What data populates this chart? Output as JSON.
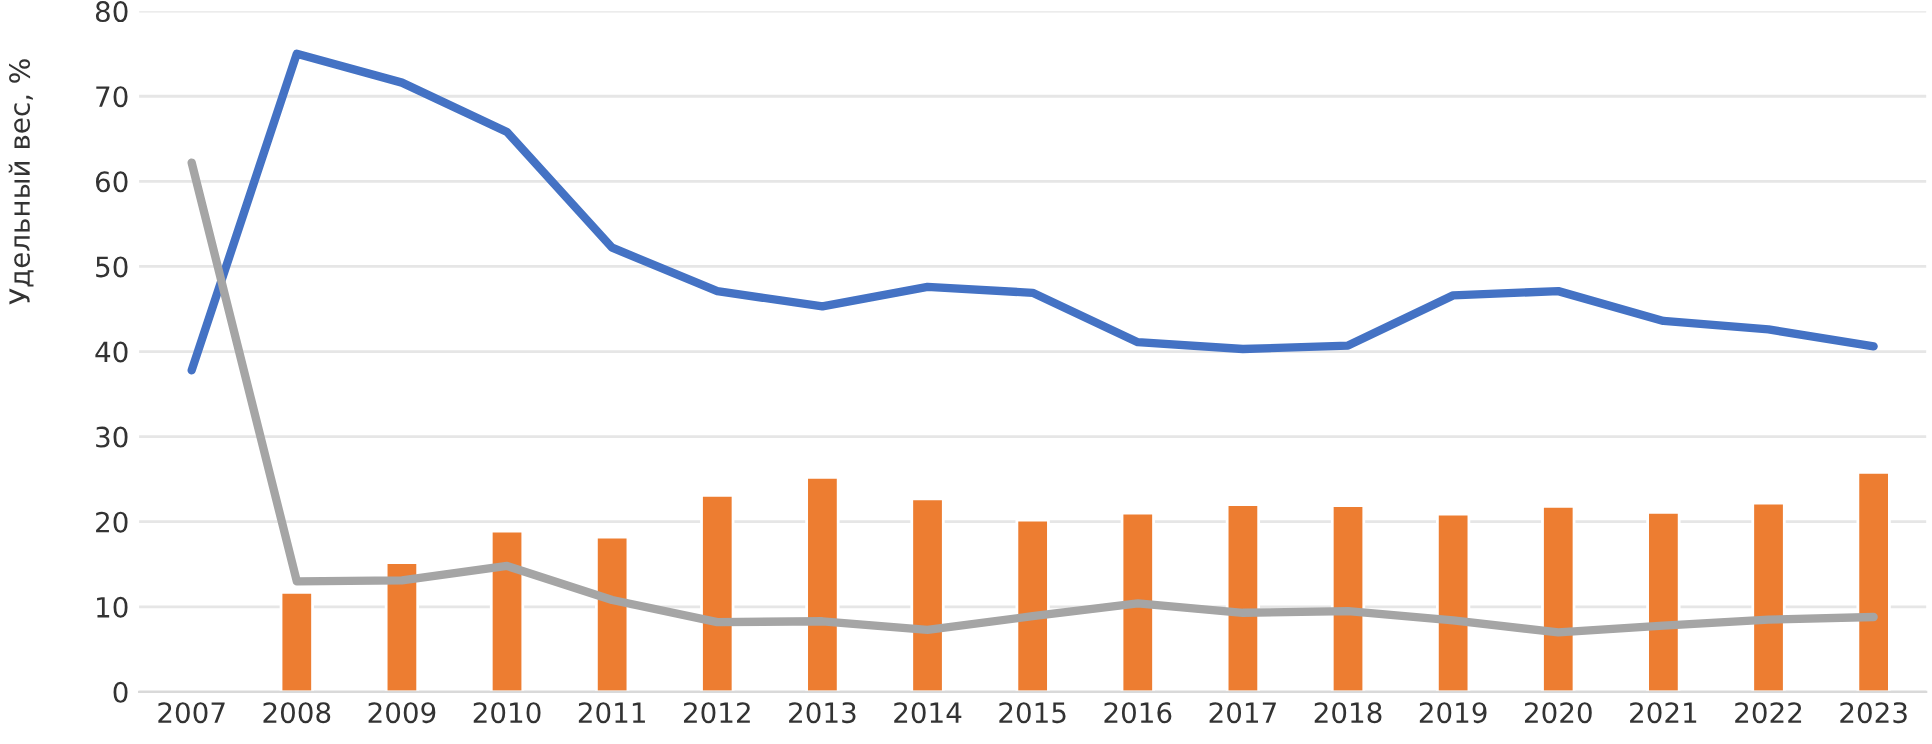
{
  "chart_data": {
    "type": "line",
    "ylabel": "Удельный вес, %",
    "categories": [
      "2007",
      "2008",
      "2009",
      "2010",
      "2011",
      "2012",
      "2013",
      "2014",
      "2015",
      "2016",
      "2017",
      "2018",
      "2019",
      "2020",
      "2021",
      "2022",
      "2023"
    ],
    "series": [
      {
        "type": "bar",
        "color": "#ed7d31",
        "values": [
          null,
          11.7,
          15.2,
          18.9,
          18.2,
          23.1,
          25.2,
          22.7,
          20.2,
          21.0,
          22.0,
          21.9,
          20.9,
          21.8,
          21.1,
          22.2,
          25.8
        ]
      },
      {
        "color": "#4472c4",
        "values": [
          37.8,
          75.0,
          71.6,
          65.8,
          52.2,
          47.1,
          45.3,
          47.6,
          46.9,
          41.1,
          40.3,
          40.7,
          46.6,
          47.1,
          43.6,
          42.6,
          40.6
        ]
      },
      {
        "color": "#a5a5a5",
        "values": [
          62.2,
          13.0,
          13.1,
          14.8,
          10.8,
          8.2,
          8.3,
          7.3,
          8.9,
          10.4,
          9.3,
          9.5,
          8.4,
          7.0,
          7.8,
          8.5,
          8.8
        ]
      }
    ],
    "ylim": [
      0,
      80
    ],
    "yticks": [
      0,
      10,
      20,
      30,
      40,
      50,
      60,
      70,
      80
    ],
    "grid": "y",
    "legend": false,
    "marker": "none",
    "line_style": "solid"
  }
}
